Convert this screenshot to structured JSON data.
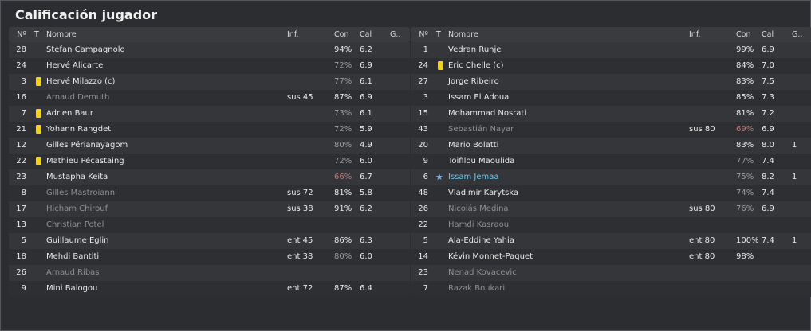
{
  "title": "Calificación jugador",
  "columns": {
    "num": "Nº",
    "t": "T",
    "name": "Nombre",
    "inf": "Inf.",
    "con": "Con",
    "cal": "Cal",
    "g": "G.."
  },
  "home": [
    {
      "num": "28",
      "name": "Stefan Campagnolo",
      "inf": "",
      "con": "94%",
      "cal": "6.2",
      "g": "",
      "card": false,
      "sub": false,
      "pct": "high"
    },
    {
      "num": "24",
      "name": "Hervé Alicarte",
      "inf": "",
      "con": "72%",
      "cal": "6.9",
      "g": "",
      "card": false,
      "sub": false,
      "pct": "mid"
    },
    {
      "num": "3",
      "name": "Hervé Milazzo (c)",
      "inf": "",
      "con": "77%",
      "cal": "6.1",
      "g": "",
      "card": true,
      "sub": false,
      "pct": "mid"
    },
    {
      "num": "16",
      "name": "Arnaud Demuth",
      "inf": "sus 45",
      "con": "87%",
      "cal": "6.9",
      "g": "",
      "card": false,
      "sub": true,
      "pct": "high"
    },
    {
      "num": "7",
      "name": "Adrien Baur",
      "inf": "",
      "con": "73%",
      "cal": "6.1",
      "g": "",
      "card": true,
      "sub": false,
      "pct": "mid"
    },
    {
      "num": "21",
      "name": "Yohann Rangdet",
      "inf": "",
      "con": "72%",
      "cal": "5.9",
      "g": "",
      "card": true,
      "sub": false,
      "pct": "mid"
    },
    {
      "num": "12",
      "name": "Gilles Périanayagom",
      "inf": "",
      "con": "80%",
      "cal": "4.9",
      "g": "",
      "card": false,
      "sub": false,
      "pct": "mid"
    },
    {
      "num": "22",
      "name": "Mathieu Pécastaing",
      "inf": "",
      "con": "72%",
      "cal": "6.0",
      "g": "",
      "card": true,
      "sub": false,
      "pct": "mid"
    },
    {
      "num": "23",
      "name": "Mustapha Keita",
      "inf": "",
      "con": "66%",
      "cal": "6.7",
      "g": "",
      "card": false,
      "sub": false,
      "pct": "low"
    },
    {
      "num": "8",
      "name": "Gilles Mastroianni",
      "inf": "sus 72",
      "con": "81%",
      "cal": "5.8",
      "g": "",
      "card": false,
      "sub": true,
      "pct": "high"
    },
    {
      "num": "17",
      "name": "Hicham Chirouf",
      "inf": "sus 38",
      "con": "91%",
      "cal": "6.2",
      "g": "",
      "card": false,
      "sub": true,
      "pct": "high"
    },
    {
      "num": "13",
      "name": "Christian Potel",
      "inf": "",
      "con": "",
      "cal": "",
      "g": "",
      "card": false,
      "sub": true,
      "pct": "high"
    },
    {
      "num": "5",
      "name": "Guillaume Eglin",
      "inf": "ent 45",
      "con": "86%",
      "cal": "6.3",
      "g": "",
      "card": false,
      "sub": false,
      "pct": "high"
    },
    {
      "num": "18",
      "name": "Mehdi Bantiti",
      "inf": "ent 38",
      "con": "80%",
      "cal": "6.0",
      "g": "",
      "card": false,
      "sub": false,
      "pct": "mid"
    },
    {
      "num": "26",
      "name": "Arnaud Ribas",
      "inf": "",
      "con": "",
      "cal": "",
      "g": "",
      "card": false,
      "sub": true,
      "pct": "high"
    },
    {
      "num": "9",
      "name": "Mini Balogou",
      "inf": "ent 72",
      "con": "87%",
      "cal": "6.4",
      "g": "",
      "card": false,
      "sub": false,
      "pct": "high"
    }
  ],
  "away": [
    {
      "num": "1",
      "name": "Vedran Runje",
      "inf": "",
      "con": "99%",
      "cal": "6.9",
      "g": "",
      "card": false,
      "sub": false,
      "pct": "high"
    },
    {
      "num": "24",
      "name": "Eric Chelle (c)",
      "inf": "",
      "con": "84%",
      "cal": "7.0",
      "g": "",
      "card": true,
      "sub": false,
      "pct": "high"
    },
    {
      "num": "27",
      "name": "Jorge Ribeiro",
      "inf": "",
      "con": "83%",
      "cal": "7.5",
      "g": "",
      "card": false,
      "sub": false,
      "pct": "high"
    },
    {
      "num": "3",
      "name": "Issam El Adoua",
      "inf": "",
      "con": "85%",
      "cal": "7.3",
      "g": "",
      "card": false,
      "sub": false,
      "pct": "high"
    },
    {
      "num": "15",
      "name": "Mohammad Nosrati",
      "inf": "",
      "con": "81%",
      "cal": "7.2",
      "g": "",
      "card": false,
      "sub": false,
      "pct": "high"
    },
    {
      "num": "43",
      "name": "Sebastián Nayar",
      "inf": "sus 80",
      "con": "69%",
      "cal": "6.9",
      "g": "",
      "card": false,
      "sub": true,
      "pct": "low"
    },
    {
      "num": "20",
      "name": "Mario Bolatti",
      "inf": "",
      "con": "83%",
      "cal": "8.0",
      "g": "1",
      "card": false,
      "sub": false,
      "pct": "high"
    },
    {
      "num": "9",
      "name": "Toifilou Maoulida",
      "inf": "",
      "con": "77%",
      "cal": "7.4",
      "g": "",
      "card": false,
      "sub": false,
      "pct": "mid"
    },
    {
      "num": "6",
      "name": "Issam Jemaa",
      "inf": "",
      "con": "75%",
      "cal": "8.2",
      "g": "1",
      "card": false,
      "sub": false,
      "pct": "mid",
      "star": true
    },
    {
      "num": "48",
      "name": "Vladimir Karytska",
      "inf": "",
      "con": "74%",
      "cal": "7.4",
      "g": "",
      "card": false,
      "sub": false,
      "pct": "mid"
    },
    {
      "num": "26",
      "name": "Nicolás Medina",
      "inf": "sus 80",
      "con": "76%",
      "cal": "6.9",
      "g": "",
      "card": false,
      "sub": true,
      "pct": "mid"
    },
    {
      "num": "22",
      "name": "Hamdi Kasraoui",
      "inf": "",
      "con": "",
      "cal": "",
      "g": "",
      "card": false,
      "sub": true,
      "pct": "high"
    },
    {
      "num": "5",
      "name": "Ala-Eddine Yahia",
      "inf": "ent 80",
      "con": "100%",
      "cal": "7.4",
      "g": "1",
      "card": false,
      "sub": false,
      "pct": "high"
    },
    {
      "num": "14",
      "name": "Kévin Monnet-Paquet",
      "inf": "ent 80",
      "con": "98%",
      "cal": "",
      "g": "",
      "card": false,
      "sub": false,
      "pct": "high"
    },
    {
      "num": "23",
      "name": "Nenad Kovacevic",
      "inf": "",
      "con": "",
      "cal": "",
      "g": "",
      "card": false,
      "sub": true,
      "pct": "high"
    },
    {
      "num": "7",
      "name": "Razak Boukari",
      "inf": "",
      "con": "",
      "cal": "",
      "g": "",
      "card": false,
      "sub": true,
      "pct": "high"
    }
  ],
  "colors": {
    "card": "#f0d21a",
    "highlight": "#6fc6e8",
    "star": "#7db8f0"
  }
}
